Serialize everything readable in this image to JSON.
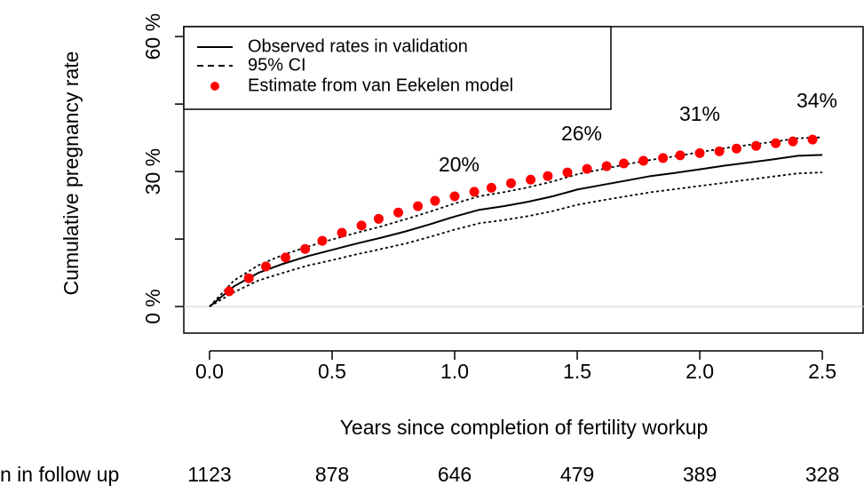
{
  "chart_data": {
    "type": "line",
    "x_label": "Years since completion of fertility workup",
    "y_label": "Cumulative pregnancy rate",
    "xlim": [
      -0.105,
      2.67
    ],
    "ylim": [
      -5.9,
      62.2
    ],
    "xticks": [
      {
        "value": 0,
        "label": "0.0"
      },
      0.5,
      {
        "value": 1,
        "label": "1.0"
      },
      1.5,
      {
        "value": 2,
        "label": "2.0"
      },
      2.5
    ],
    "yticks": [
      {
        "value": 0,
        "label": "0 %"
      },
      {
        "value": 15,
        "label": null
      },
      {
        "value": 30,
        "label": "30 %"
      },
      {
        "value": 45,
        "label": null
      },
      {
        "value": 60,
        "label": "60 %"
      }
    ],
    "legend": "top-left",
    "x": [
      0,
      0.1,
      0.2,
      0.3,
      0.4,
      0.5,
      0.6,
      0.7,
      0.8,
      0.9,
      1.0,
      1.1,
      1.2,
      1.3,
      1.4,
      1.5,
      1.6,
      1.7,
      1.8,
      1.9,
      2.0,
      2.1,
      2.2,
      2.3,
      2.4,
      2.5
    ],
    "series": [
      {
        "name": "Observed rates in validation",
        "color": "#000000",
        "values": [
          0,
          4.5,
          7.5,
          9.5,
          11.2,
          12.6,
          14.0,
          15.3,
          16.7,
          18.3,
          20.0,
          21.5,
          22.3,
          23.3,
          24.5,
          26.0,
          27.0,
          28.0,
          29.0,
          29.7,
          30.5,
          31.3,
          32.0,
          32.7,
          33.5,
          33.7
        ]
      },
      {
        "name": "95% CI",
        "color": "#000000",
        "upper": [
          0,
          5.8,
          9.2,
          11.5,
          13.3,
          14.9,
          16.4,
          17.8,
          19.4,
          21.1,
          22.9,
          24.5,
          25.4,
          26.5,
          27.8,
          29.4,
          30.5,
          31.6,
          32.6,
          33.4,
          34.3,
          35.2,
          35.9,
          36.6,
          37.4,
          37.6
        ],
        "lower": [
          0,
          3.2,
          5.8,
          7.5,
          9.1,
          10.3,
          11.6,
          12.8,
          14.0,
          15.5,
          17.1,
          18.5,
          19.2,
          20.1,
          21.2,
          22.6,
          23.6,
          24.5,
          25.4,
          26.1,
          26.8,
          27.5,
          28.2,
          28.9,
          29.6,
          29.8
        ]
      },
      {
        "name": "Estimate from van Eekelen model",
        "color": "#ff0000",
        "x": [
          0.08,
          0.16,
          0.23,
          0.31,
          0.39,
          0.46,
          0.54,
          0.62,
          0.69,
          0.77,
          0.85,
          0.92,
          1.0,
          1.08,
          1.15,
          1.23,
          1.31,
          1.38,
          1.46,
          1.54,
          1.62,
          1.69,
          1.77,
          1.85,
          1.92,
          2.0,
          2.08,
          2.15,
          2.23,
          2.31,
          2.38,
          2.46
        ],
        "values": [
          3.4,
          6.3,
          8.9,
          10.9,
          12.8,
          14.6,
          16.4,
          18.0,
          19.5,
          20.9,
          22.3,
          23.5,
          24.5,
          25.5,
          26.4,
          27.4,
          28.2,
          29.0,
          29.8,
          30.6,
          31.2,
          31.8,
          32.4,
          33.0,
          33.6,
          34.1,
          34.5,
          35.1,
          35.7,
          36.3,
          36.7,
          37.1
        ]
      }
    ],
    "annotations": [
      "20%",
      "26%",
      "31%",
      "34%"
    ],
    "at_risk": {
      "label": "n in follow up",
      "values": [
        1123,
        878,
        646,
        479,
        389,
        328
      ]
    }
  }
}
